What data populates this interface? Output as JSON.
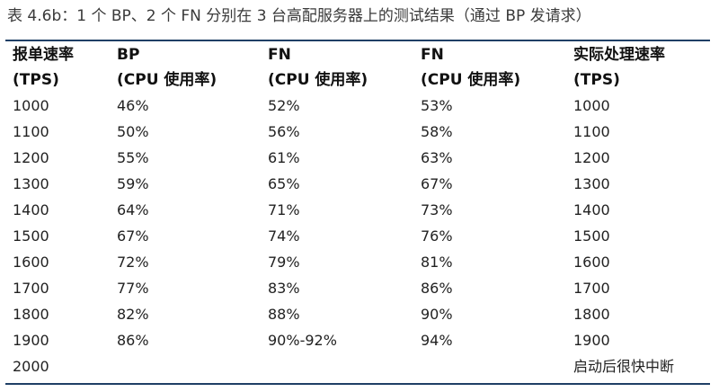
{
  "caption": "表 4.6b：1 个 BP、2 个 FN 分别在 3 台高配服务器上的测试结果（通过 BP 发请求）",
  "table": {
    "header_row1": [
      "报单速率",
      "BP",
      "FN",
      "FN",
      "实际处理速率"
    ],
    "header_row2": [
      "(TPS)",
      "(CPU 使用率)",
      "(CPU 使用率)",
      "(CPU 使用率)",
      "(TPS)"
    ],
    "rows": [
      [
        "1000",
        "46%",
        "52%",
        "53%",
        "1000"
      ],
      [
        "1100",
        "50%",
        "56%",
        "58%",
        "1100"
      ],
      [
        "1200",
        "55%",
        "61%",
        "63%",
        "1200"
      ],
      [
        "1300",
        "59%",
        "65%",
        "67%",
        "1300"
      ],
      [
        "1400",
        "64%",
        "71%",
        "73%",
        "1400"
      ],
      [
        "1500",
        "67%",
        "74%",
        "76%",
        "1500"
      ],
      [
        "1600",
        "72%",
        "79%",
        "81%",
        "1600"
      ],
      [
        "1700",
        "77%",
        "83%",
        "86%",
        "1700"
      ],
      [
        "1800",
        "82%",
        "88%",
        "90%",
        "1800"
      ],
      [
        "1900",
        "86%",
        "90%-92%",
        "94%",
        "1900"
      ],
      [
        "2000",
        "",
        "",
        "",
        "启动后很快中断"
      ]
    ]
  },
  "colors": {
    "rule": "#1f3f66",
    "text": "#222222"
  }
}
